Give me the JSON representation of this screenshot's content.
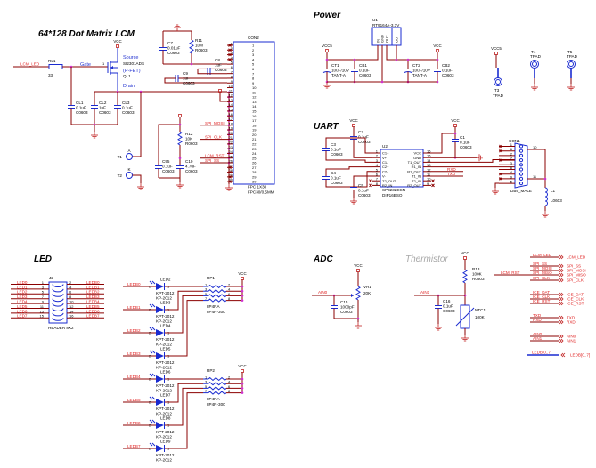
{
  "colors": {
    "wire": "#8b0000",
    "component": "#1a2bd0",
    "net_label": "#e02020",
    "junction": "#d030d0"
  },
  "lcm": {
    "title": "64*128 Dot Matrix LCM",
    "net_lcm_led": "LCM_LED",
    "rl1": {
      "ref": "RL1",
      "value": "33"
    },
    "gate": "Gate",
    "gate_pin": "1",
    "vcc": "VCC",
    "fet": {
      "source": "Source",
      "part": "SI2301ADS",
      "type": "(P-FET)",
      "ref": "QL1",
      "drain": "Drain"
    },
    "caps": [
      {
        "ref": "CL1",
        "value": "0.1uF",
        "pkg": "C0603"
      },
      {
        "ref": "CL2",
        "value": "1uF",
        "pkg": "C0603"
      },
      {
        "ref": "CL3",
        "value": "0.1uF",
        "pkg": "C0603"
      }
    ],
    "c7": {
      "ref": "C7",
      "value": "0.01uF",
      "pkg": "C0603"
    },
    "r11": {
      "ref": "R11",
      "value": "10M",
      "pkg": "R0603"
    },
    "c8": {
      "ref": "C8",
      "value": "1uF",
      "pkg": "C0603"
    },
    "c9": {
      "ref": "C9",
      "value": "1uF",
      "pkg": "C0603"
    },
    "r12": {
      "ref": "R12",
      "value": "10K",
      "pkg": "R0603"
    },
    "c95": {
      "ref": "C95",
      "value": "0.1uF",
      "pkg": "C0603"
    },
    "c10": {
      "ref": "C10",
      "value": "4.7uF",
      "pkg": "C0603"
    },
    "t1": {
      "ref": "T1",
      "label": "A"
    },
    "t2": {
      "ref": "T2",
      "label": "K"
    },
    "nets": [
      "SPI_MOSI",
      "SPI_CLK",
      "LCM_RST",
      "SPI_SS"
    ],
    "con2": {
      "ref": "CON2",
      "part": "FPC 1X30",
      "pkg": "FPC30/0.5MM",
      "pins": [
        "1",
        "2",
        "3",
        "4",
        "5",
        "6",
        "7",
        "8",
        "9",
        "10",
        "11",
        "12",
        "13",
        "14",
        "15",
        "16",
        "17",
        "18",
        "19",
        "20",
        "21",
        "22",
        "23",
        "24",
        "25",
        "26",
        "27",
        "28",
        "29",
        "30"
      ]
    }
  },
  "power": {
    "title": "Power",
    "u1": {
      "ref": "U1",
      "part": "RT9164A-3.3V",
      "pins": [
        "IN",
        "GND",
        "OUT",
        "OUT"
      ]
    },
    "vcc5": "VCC5",
    "vcc": "VCC",
    "ct1": {
      "ref": "CT1",
      "value": "10uF/10V",
      "pkg": "TANT-A"
    },
    "cb1": {
      "ref": "CB1",
      "value": "0.1uF",
      "pkg": "C0603"
    },
    "ct2": {
      "ref": "CT2",
      "value": "10uF/10V",
      "pkg": "TANT-A"
    },
    "cb2": {
      "ref": "CB2",
      "value": "0.1uF",
      "pkg": "C0603"
    },
    "t3": {
      "ref": "T3",
      "part": "TPAD",
      "vcc": "VCC5"
    },
    "t4": {
      "ref": "T4",
      "part": "TPAD"
    },
    "t5": {
      "ref": "T5",
      "part": "TPAD"
    }
  },
  "uart": {
    "title": "UART",
    "vcc": "VCC",
    "u2": {
      "ref": "U2",
      "part": "SP3232ECN",
      "pkg": "DIP16BSO",
      "left_pins": [
        {
          "n": "1",
          "name": "C1+"
        },
        {
          "n": "2",
          "name": "V+"
        },
        {
          "n": "3",
          "name": "C1-"
        },
        {
          "n": "4",
          "name": "C2+"
        },
        {
          "n": "5",
          "name": "C2-"
        },
        {
          "n": "6",
          "name": "V-"
        },
        {
          "n": "7",
          "name": "T2_OUT"
        },
        {
          "n": "8",
          "name": "R2_IN"
        }
      ],
      "right_pins": [
        {
          "n": "16",
          "name": "VCC"
        },
        {
          "n": "15",
          "name": "GND"
        },
        {
          "n": "14",
          "name": "T1_OUT"
        },
        {
          "n": "13",
          "name": "R1_IN"
        },
        {
          "n": "12",
          "name": "R1_OUT"
        },
        {
          "n": "11",
          "name": "T1_IN"
        },
        {
          "n": "10",
          "name": "T2_IN"
        },
        {
          "n": "9",
          "name": "R2_OUT"
        }
      ]
    },
    "c1": {
      "ref": "C1",
      "value": "0.1uF",
      "pkg": "C0603"
    },
    "c2": {
      "ref": "C2",
      "value": "0.1uF",
      "pkg": "C0603"
    },
    "c3": {
      "ref": "C3",
      "value": "0.1uF",
      "pkg": "C0603"
    },
    "c4": {
      "ref": "C4",
      "value": "0.1uF",
      "pkg": "C0603"
    },
    "c5": {
      "ref": "C5",
      "value": "0.1uF",
      "pkg": "C0603"
    },
    "rxd": "RXD",
    "txd": "TXD",
    "con1": {
      "ref": "CON1",
      "part": "DB9_MALE",
      "pins": [
        "1",
        "6",
        "2",
        "7",
        "3",
        "8",
        "4",
        "9",
        "5"
      ],
      "shield_pins": [
        "10",
        "11"
      ]
    },
    "l1": {
      "ref": "L1",
      "pkg": "L0603"
    }
  },
  "led": {
    "title": "LED",
    "j2": {
      "ref": "J2",
      "part": "HEADER 8X2",
      "left_nets": [
        "LED0",
        "LED1",
        "LED2",
        "LED3",
        "LED4",
        "LED5",
        "LED6",
        "LED7"
      ],
      "left_pins": [
        "1",
        "3",
        "5",
        "7",
        "9",
        "11",
        "13",
        "15"
      ],
      "right_pins": [
        "2",
        "4",
        "6",
        "8",
        "10",
        "12",
        "14",
        "16"
      ],
      "right_nets": [
        "LEDB0",
        "LEDB1",
        "LEDB2",
        "LEDB3",
        "LEDB4",
        "LEDB5",
        "LEDB6",
        "LEDB7"
      ]
    },
    "leds": [
      {
        "net": "LEDB0",
        "ref": "LED2"
      },
      {
        "net": "LEDB1",
        "ref": "LED3"
      },
      {
        "net": "LEDB2",
        "ref": "LED4"
      },
      {
        "net": "LEDB3",
        "ref": "LED5"
      },
      {
        "net": "LEDB4",
        "ref": "LED6"
      },
      {
        "net": "LEDB5",
        "ref": "LED7"
      },
      {
        "net": "LEDB6",
        "ref": "LED8"
      },
      {
        "net": "LEDB7",
        "ref": "LED9"
      }
    ],
    "led_part": "KPT-2012",
    "led_pkg": "KP-2012",
    "led_pin_a": "2",
    "led_pin_k": "1",
    "rpacks": [
      {
        "ref": "RP1",
        "part": "8P4RA",
        "pkg": "8P4R-300",
        "vcc": "VCC"
      },
      {
        "ref": "RP2",
        "part": "8P4RA",
        "pkg": "8P4R-300",
        "vcc": "VCC"
      }
    ],
    "rp_left_pins": [
      "1",
      "3",
      "5",
      "7"
    ],
    "rp_right_pins": [
      "2",
      "4",
      "6",
      "8"
    ]
  },
  "adc": {
    "title": "ADC",
    "vcc": "VCC",
    "net": "AIN0",
    "vr1": {
      "ref": "VR1",
      "value": "20K"
    },
    "c15": {
      "ref": "C15",
      "value": "1000pF",
      "pkg": "C0603"
    }
  },
  "thermistor": {
    "title": "Thermistor",
    "vcc": "VCC",
    "net": "AIN1",
    "r13": {
      "ref": "R13",
      "value": "100K",
      "pkg": "R0603"
    },
    "c16": {
      "ref": "C16",
      "value": "0.1uF",
      "pkg": "C0603"
    },
    "ntc1": {
      "ref": "NTC1",
      "value": "100K"
    }
  },
  "ports": {
    "lcm_rst": "LCM_RST",
    "groups": [
      [
        "LCM_LED"
      ],
      [
        "SPI_SS",
        "SPI_MOSI",
        "SPI_MISO",
        "SPI_CLK"
      ],
      [
        "ICE_DAT",
        "ICE_CLK",
        "ICE_RST"
      ],
      [
        "TXD",
        "RXD"
      ],
      [
        "AIN0",
        "AIN1"
      ]
    ],
    "led_bus": "LEDB[0..7]"
  }
}
